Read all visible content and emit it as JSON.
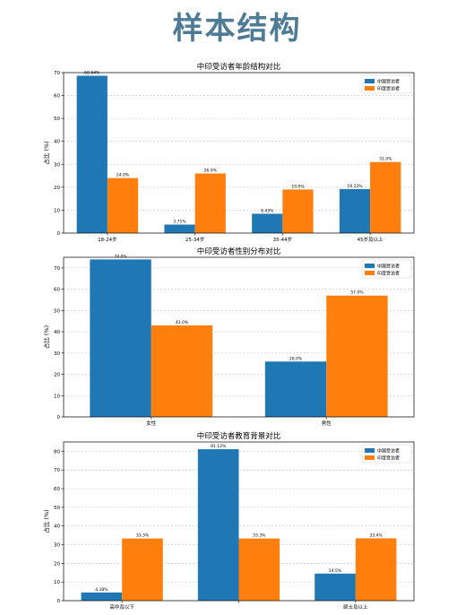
{
  "page": {
    "title": "样本结构"
  },
  "colors": {
    "china": "#1f77b4",
    "india": "#ff7f0e",
    "title": "#4d7b95"
  },
  "chart_data": [
    {
      "type": "bar",
      "title": "中印受访者年龄结构对比",
      "ylabel": "占比 (%)",
      "ylim": [
        0,
        70
      ],
      "yticks": [
        0,
        10,
        20,
        30,
        40,
        50,
        60,
        70
      ],
      "grid": "y",
      "legend": "top-right",
      "categories": [
        "18-24岁",
        "25-34岁",
        "35-44岁",
        "45岁及以上"
      ],
      "series": [
        {
          "name": "中国受访者",
          "values": [
            68.64,
            3.71,
            8.43,
            19.22
          ],
          "labels": [
            "68.64%",
            "3.71%",
            "8.43%",
            "19.22%"
          ]
        },
        {
          "name": "印度受访者",
          "values": [
            24.0,
            26.0,
            19.0,
            31.0
          ],
          "labels": [
            "24.0%",
            "26.0%",
            "19.0%",
            "31.0%"
          ]
        }
      ]
    },
    {
      "type": "bar",
      "title": "中印受访者性别分布对比",
      "ylabel": "占比 (%)",
      "ylim": [
        0,
        75
      ],
      "yticks": [
        0,
        10,
        20,
        30,
        40,
        50,
        60,
        70
      ],
      "grid": "y",
      "legend": "top-right",
      "categories": [
        "女性",
        "男性"
      ],
      "series": [
        {
          "name": "中国受访者",
          "values": [
            74.0,
            26.0
          ],
          "labels": [
            "74.0%",
            "26.0%"
          ]
        },
        {
          "name": "印度受访者",
          "values": [
            43.0,
            57.0
          ],
          "labels": [
            "43.0%",
            "57.0%"
          ]
        }
      ]
    },
    {
      "type": "bar",
      "title": "中印受访者教育背景对比",
      "ylabel": "占比 (%)",
      "ylim": [
        0,
        85
      ],
      "yticks": [
        0,
        10,
        20,
        30,
        40,
        50,
        60,
        70,
        80
      ],
      "grid": "y",
      "legend": "top-right",
      "categories": [
        "高中及以下",
        "",
        "硕士及以上"
      ],
      "series": [
        {
          "name": "中国受访者",
          "values": [
            4.38,
            81.12,
            14.5
          ],
          "labels": [
            "4.38%",
            "81.12%",
            "14.5%"
          ]
        },
        {
          "name": "印度受访者",
          "values": [
            33.3,
            33.3,
            33.4
          ],
          "labels": [
            "33.3%",
            "33.3%",
            "33.4%"
          ]
        }
      ]
    }
  ]
}
